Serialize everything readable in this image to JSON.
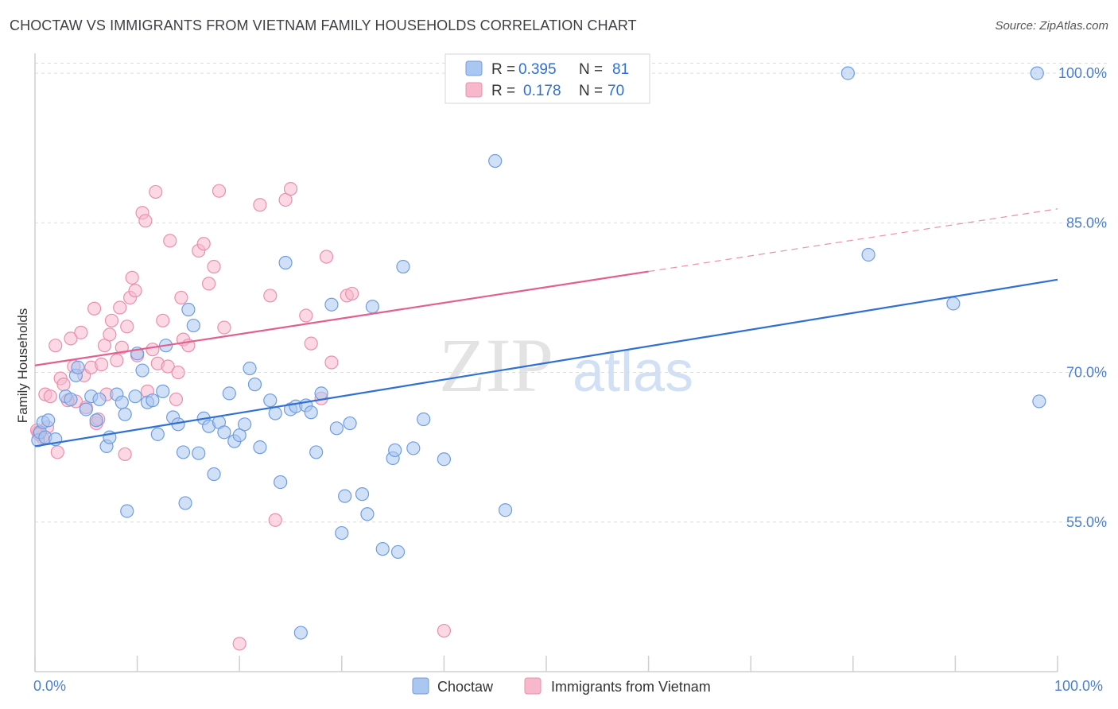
{
  "title": "CHOCTAW VS IMMIGRANTS FROM VIETNAM FAMILY HOUSEHOLDS CORRELATION CHART",
  "source": "Source: ZipAtlas.com",
  "watermark": {
    "zip": "ZIP",
    "atlas": "atlas"
  },
  "colors": {
    "choctaw_fill": "#a9c7f0",
    "choctaw_stroke": "#6f9de0",
    "choctaw_line": "#2f6fd6",
    "vietnam_fill": "#f7b8cc",
    "vietnam_stroke": "#ea8fae",
    "vietnam_line": "#e35f8e",
    "grid": "#dddddd",
    "tick_label": "#4a7fd0"
  },
  "legend": {
    "rows": [
      {
        "r_label": "R =",
        "r_value": "0.395",
        "n_label": "N =",
        "n_value": "81"
      },
      {
        "r_label": "R =",
        "r_value": "0.178",
        "n_label": "N =",
        "n_value": "70"
      }
    ]
  },
  "chart_data": {
    "type": "scatter",
    "xlabel": "",
    "ylabel": "Family Households",
    "xlim": [
      0,
      100
    ],
    "ylim": [
      40,
      102
    ],
    "x_tick_labels": [
      "0.0%",
      "100.0%"
    ],
    "y_ticks": [
      55,
      70,
      85,
      100
    ],
    "y_tick_labels": [
      "55.0%",
      "70.0%",
      "85.0%",
      "100.0%"
    ],
    "series": [
      {
        "name": "Choctaw",
        "r": 0.395,
        "n": 81,
        "trend": {
          "x": [
            0,
            100
          ],
          "y": [
            62.6,
            79.3
          ],
          "dashed_from": null
        },
        "points": [
          [
            0.3,
            63.2
          ],
          [
            0.5,
            64.0
          ],
          [
            0.8,
            65.0
          ],
          [
            1.0,
            63.5
          ],
          [
            1.3,
            65.2
          ],
          [
            2.0,
            63.3
          ],
          [
            3.0,
            67.6
          ],
          [
            3.5,
            67.3
          ],
          [
            4.0,
            69.7
          ],
          [
            4.2,
            70.5
          ],
          [
            5.0,
            66.3
          ],
          [
            5.5,
            67.6
          ],
          [
            6.0,
            65.2
          ],
          [
            6.3,
            67.3
          ],
          [
            7.0,
            62.6
          ],
          [
            7.3,
            63.5
          ],
          [
            8.0,
            67.8
          ],
          [
            8.5,
            67.0
          ],
          [
            8.8,
            65.8
          ],
          [
            9.0,
            56.1
          ],
          [
            9.8,
            67.6
          ],
          [
            10.0,
            71.9
          ],
          [
            10.5,
            70.2
          ],
          [
            11.0,
            67.0
          ],
          [
            11.5,
            67.2
          ],
          [
            12.0,
            63.8
          ],
          [
            12.5,
            68.1
          ],
          [
            12.8,
            72.7
          ],
          [
            13.5,
            65.5
          ],
          [
            14.0,
            64.8
          ],
          [
            14.5,
            62.0
          ],
          [
            14.7,
            56.9
          ],
          [
            15.0,
            76.3
          ],
          [
            15.5,
            74.7
          ],
          [
            16.0,
            61.9
          ],
          [
            16.5,
            65.4
          ],
          [
            17.0,
            64.6
          ],
          [
            17.5,
            59.8
          ],
          [
            18.0,
            65.0
          ],
          [
            18.5,
            64.0
          ],
          [
            19.0,
            67.9
          ],
          [
            19.5,
            63.1
          ],
          [
            20.0,
            63.7
          ],
          [
            20.5,
            64.8
          ],
          [
            21.0,
            70.4
          ],
          [
            21.5,
            68.8
          ],
          [
            22.0,
            62.5
          ],
          [
            23.0,
            67.2
          ],
          [
            23.5,
            65.9
          ],
          [
            24.0,
            59.0
          ],
          [
            24.5,
            81.0
          ],
          [
            25.0,
            66.3
          ],
          [
            25.5,
            66.6
          ],
          [
            26.0,
            43.9
          ],
          [
            26.5,
            66.7
          ],
          [
            27.0,
            66.0
          ],
          [
            27.5,
            62.0
          ],
          [
            28.0,
            67.9
          ],
          [
            29.0,
            76.8
          ],
          [
            29.5,
            64.4
          ],
          [
            30.0,
            53.9
          ],
          [
            30.3,
            57.6
          ],
          [
            30.8,
            64.9
          ],
          [
            32.0,
            57.8
          ],
          [
            32.5,
            55.8
          ],
          [
            33.0,
            76.6
          ],
          [
            34.0,
            52.3
          ],
          [
            35.5,
            52.0
          ],
          [
            35.0,
            61.4
          ],
          [
            35.2,
            62.2
          ],
          [
            36.0,
            80.6
          ],
          [
            37.0,
            62.4
          ],
          [
            38.0,
            65.3
          ],
          [
            40.0,
            61.3
          ],
          [
            45.0,
            91.2
          ],
          [
            46.0,
            56.2
          ],
          [
            79.5,
            100.0
          ],
          [
            81.5,
            81.8
          ],
          [
            89.8,
            76.9
          ],
          [
            98.0,
            100.0
          ],
          [
            98.2,
            67.1
          ]
        ]
      },
      {
        "name": "Immigrants from Vietnam",
        "r": 0.178,
        "n": 70,
        "trend": {
          "x": [
            0,
            100
          ],
          "y": [
            70.7,
            86.4
          ],
          "dashed_from": 60
        },
        "points": [
          [
            0.3,
            64.0
          ],
          [
            0.7,
            63.5
          ],
          [
            1.0,
            67.8
          ],
          [
            1.5,
            67.6
          ],
          [
            2.0,
            72.7
          ],
          [
            2.2,
            62.0
          ],
          [
            2.5,
            69.4
          ],
          [
            2.8,
            68.8
          ],
          [
            3.5,
            73.4
          ],
          [
            3.8,
            70.6
          ],
          [
            4.0,
            67.1
          ],
          [
            4.5,
            74.0
          ],
          [
            4.8,
            69.7
          ],
          [
            5.0,
            66.5
          ],
          [
            5.5,
            70.5
          ],
          [
            5.8,
            76.4
          ],
          [
            6.0,
            64.9
          ],
          [
            6.5,
            70.8
          ],
          [
            6.8,
            72.7
          ],
          [
            7.0,
            67.8
          ],
          [
            7.3,
            73.8
          ],
          [
            7.5,
            75.2
          ],
          [
            8.0,
            71.2
          ],
          [
            8.3,
            76.5
          ],
          [
            8.5,
            72.5
          ],
          [
            8.8,
            61.8
          ],
          [
            9.0,
            74.6
          ],
          [
            9.3,
            77.5
          ],
          [
            9.5,
            79.5
          ],
          [
            9.8,
            78.2
          ],
          [
            10.0,
            71.7
          ],
          [
            10.5,
            86.0
          ],
          [
            10.8,
            85.2
          ],
          [
            11.0,
            68.1
          ],
          [
            11.5,
            72.3
          ],
          [
            11.8,
            88.1
          ],
          [
            12.0,
            70.9
          ],
          [
            12.5,
            75.2
          ],
          [
            13.0,
            70.6
          ],
          [
            13.2,
            83.2
          ],
          [
            13.8,
            67.3
          ],
          [
            14.0,
            70.0
          ],
          [
            14.3,
            77.5
          ],
          [
            14.5,
            73.3
          ],
          [
            15.0,
            72.7
          ],
          [
            16.0,
            82.2
          ],
          [
            16.5,
            82.9
          ],
          [
            17.0,
            78.9
          ],
          [
            17.5,
            80.6
          ],
          [
            18.0,
            88.2
          ],
          [
            18.5,
            74.5
          ],
          [
            20.0,
            42.8
          ],
          [
            22.0,
            86.8
          ],
          [
            23.0,
            77.7
          ],
          [
            23.5,
            55.2
          ],
          [
            24.5,
            87.3
          ],
          [
            25.0,
            88.4
          ],
          [
            26.5,
            75.7
          ],
          [
            27.0,
            72.9
          ],
          [
            28.0,
            67.4
          ],
          [
            28.5,
            81.6
          ],
          [
            29.0,
            71.0
          ],
          [
            30.5,
            77.7
          ],
          [
            31.0,
            77.9
          ],
          [
            40.0,
            44.1
          ],
          [
            0.2,
            64.2
          ],
          [
            0.4,
            63.8
          ],
          [
            1.2,
            64.5
          ],
          [
            3.2,
            67.2
          ],
          [
            6.2,
            65.3
          ]
        ]
      }
    ]
  },
  "bottom_legend": [
    "Choctaw",
    "Immigrants from Vietnam"
  ]
}
